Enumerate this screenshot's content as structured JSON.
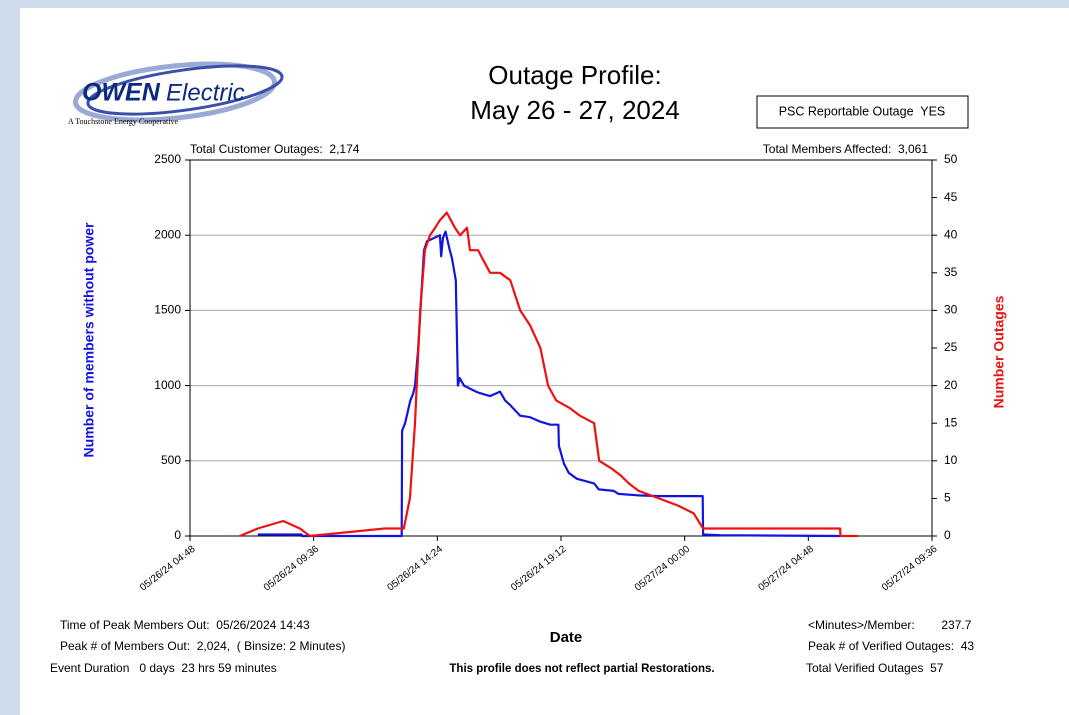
{
  "logo": {
    "brand": "OWEN",
    "brand_rest": "Electric",
    "tagline": "A Touchstone Energy Cooperative"
  },
  "chart_data": {
    "type": "line",
    "title": "Outage Profile:",
    "subtitle": "May 26 - 27, 2024",
    "badge": "PSC Reportable Outage  YES",
    "top_left_note": "Total Customer Outages:  2,174",
    "top_right_note": "Total Members Affected:  3,061",
    "xlabel": "Date",
    "ylabel": "Number of members without power",
    "y2label": "Number Outages",
    "footnote": "This profile does not reflect partial Restorations.",
    "stats_left": [
      "Time of Peak Members Out:  05/26/2024 14:43",
      "Peak # of Members Out:  2,024,  ( Binsize: 2 Minutes)",
      "Event Duration   0 days  23 hrs 59 minutes"
    ],
    "stats_right": [
      "<Minutes>/Member:        237.7",
      "Peak # of Verified Outages:  43",
      "Total Verified Outages  57"
    ],
    "xlim": [
      "05/26/24 04:48",
      "05/27/24 09:36"
    ],
    "xticks": [
      "05/26/24 04:48",
      "05/26/24 09:36",
      "05/26/24 14:24",
      "05/26/24 19:12",
      "05/27/24 00:00",
      "05/27/24 04:48",
      "05/27/24 09:36"
    ],
    "ylim": [
      0,
      2500
    ],
    "yticks": [
      0,
      500,
      1000,
      1500,
      2000,
      2500
    ],
    "y2lim": [
      0,
      50
    ],
    "y2ticks": [
      0,
      5,
      10,
      15,
      20,
      25,
      30,
      35,
      40,
      45,
      50
    ],
    "grid": true,
    "series": [
      {
        "name": "Number of members without power",
        "color": "#1414e0",
        "axis": "y",
        "x": [
          "05/26/24 07:26",
          "05/26/24 09:08",
          "05/26/24 09:09",
          "05/26/24 13:01",
          "05/26/24 13:02",
          "05/26/24 13:09",
          "05/26/24 13:21",
          "05/26/24 13:28",
          "05/26/24 13:32",
          "05/26/24 13:39",
          "05/26/24 13:53",
          "05/26/24 14:00",
          "05/26/24 14:30",
          "05/26/24 14:33",
          "05/26/24 14:37",
          "05/26/24 14:43",
          "05/26/24 14:53",
          "05/26/24 14:58",
          "05/26/24 15:07",
          "05/26/24 15:12",
          "05/26/24 15:16",
          "05/26/24 15:26",
          "05/26/24 15:40",
          "05/26/24 15:54",
          "05/26/24 16:03",
          "05/26/24 16:27",
          "05/26/24 16:50",
          "05/26/24 17:02",
          "05/26/24 17:14",
          "05/26/24 17:37",
          "05/26/24 18:00",
          "05/26/24 18:24",
          "05/26/24 18:47",
          "05/26/24 19:06",
          "05/26/24 19:07",
          "05/26/24 19:19",
          "05/26/24 19:30",
          "05/26/24 19:49",
          "05/26/24 20:29",
          "05/26/24 20:40",
          "05/26/24 21:15",
          "05/26/24 21:26",
          "05/26/24 22:13",
          "05/26/24 23:00",
          "05/27/24 00:42",
          "05/27/24 00:43",
          "05/27/24 01:22",
          "05/27/24 06:02"
        ],
        "values": [
          10,
          10,
          0,
          0,
          700,
          750,
          900,
          950,
          1000,
          1230,
          1900,
          1960,
          2000,
          1860,
          1980,
          2024,
          1900,
          1850,
          1700,
          1000,
          1050,
          1000,
          980,
          960,
          950,
          930,
          960,
          900,
          870,
          800,
          790,
          760,
          740,
          740,
          600,
          480,
          420,
          380,
          350,
          310,
          300,
          280,
          270,
          265,
          265,
          10,
          5,
          0
        ]
      },
      {
        "name": "Number Outages",
        "color": "#ee1111",
        "axis": "y2",
        "x": [
          "05/26/24 06:44",
          "05/26/24 07:26",
          "05/26/24 08:25",
          "05/26/24 09:04",
          "05/26/24 09:27",
          "05/26/24 12:20",
          "05/26/24 13:06",
          "05/26/24 13:20",
          "05/26/24 13:32",
          "05/26/24 13:44",
          "05/26/24 13:55",
          "05/26/24 14:07",
          "05/26/24 14:19",
          "05/26/24 14:30",
          "05/26/24 14:46",
          "05/26/24 15:05",
          "05/26/24 15:17",
          "05/26/24 15:33",
          "05/26/24 15:40",
          "05/26/24 15:59",
          "05/26/24 16:08",
          "05/26/24 16:27",
          "05/26/24 16:50",
          "05/26/24 17:14",
          "05/26/24 17:37",
          "05/26/24 18:00",
          "05/26/24 18:24",
          "05/26/24 18:42",
          "05/26/24 19:01",
          "05/26/24 19:33",
          "05/26/24 19:56",
          "05/26/24 20:29",
          "05/26/24 20:41",
          "05/26/24 21:09",
          "05/26/24 21:32",
          "05/26/24 21:50",
          "05/26/24 22:13",
          "05/26/24 23:00",
          "05/26/24 23:46",
          "05/27/24 00:21",
          "05/27/24 00:43",
          "05/27/24 01:22",
          "05/27/24 06:02",
          "05/27/24 06:03",
          "05/27/24 06:44"
        ],
        "values": [
          0,
          1,
          2,
          1,
          0,
          1,
          1,
          5,
          15,
          30,
          38,
          40,
          41,
          42,
          43,
          41,
          40,
          41,
          38,
          38,
          37,
          35,
          35,
          34,
          30,
          28,
          25,
          20,
          18,
          17,
          16,
          15,
          10,
          9,
          8,
          7,
          6,
          5,
          4,
          3,
          1,
          1,
          1,
          0,
          0
        ]
      }
    ]
  }
}
